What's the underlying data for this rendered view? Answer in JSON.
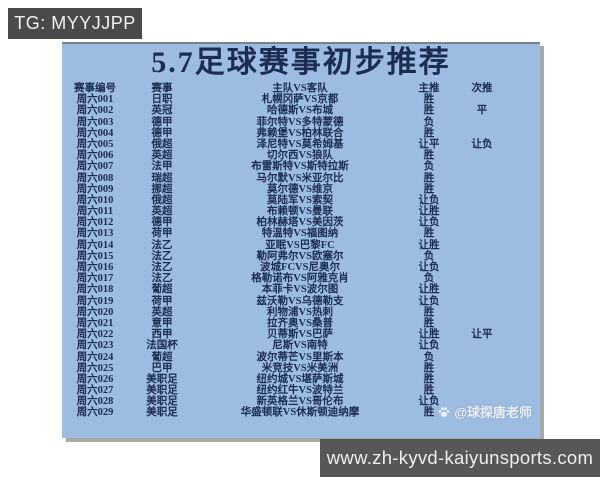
{
  "badge": {
    "text": "TG: MYYJJPP"
  },
  "panel": {
    "title": "5.7足球赛事初步推荐",
    "columns": {
      "id": "赛事编号",
      "league": "赛事",
      "match": "主队VS客队",
      "main": "主推",
      "alt": "次推"
    },
    "rows": [
      {
        "id": "周六001",
        "league": "日职",
        "match": "札幌冈萨VS京都",
        "main": "胜",
        "alt": ""
      },
      {
        "id": "周六002",
        "league": "英冠",
        "match": "哈德斯VS布城",
        "main": "胜",
        "alt": "平"
      },
      {
        "id": "周六003",
        "league": "德甲",
        "match": "菲尔特VS多特蒙德",
        "main": "负",
        "alt": ""
      },
      {
        "id": "周六004",
        "league": "德甲",
        "match": "弗赖堡VS柏林联合",
        "main": "胜",
        "alt": ""
      },
      {
        "id": "周六005",
        "league": "俄超",
        "match": "泽尼特VS莫希姆基",
        "main": "让平",
        "alt": "让负"
      },
      {
        "id": "周六006",
        "league": "英超",
        "match": "切尔西VS狼队",
        "main": "胜",
        "alt": ""
      },
      {
        "id": "周六007",
        "league": "法甲",
        "match": "布雷斯特VS斯特拉斯",
        "main": "负",
        "alt": ""
      },
      {
        "id": "周六008",
        "league": "瑞超",
        "match": "马尔默VS米亚尔比",
        "main": "胜",
        "alt": ""
      },
      {
        "id": "周六009",
        "league": "挪超",
        "match": "莫尔德VS维京",
        "main": "胜",
        "alt": ""
      },
      {
        "id": "周六010",
        "league": "俄超",
        "match": "莫陆军VS索契",
        "main": "让负",
        "alt": ""
      },
      {
        "id": "周六011",
        "league": "英超",
        "match": "布赖顿VS曼联",
        "main": "让胜",
        "alt": ""
      },
      {
        "id": "周六012",
        "league": "德甲",
        "match": "柏林赫塔VS美因茨",
        "main": "让负",
        "alt": ""
      },
      {
        "id": "周六013",
        "league": "荷甲",
        "match": "特温特VS福图纳",
        "main": "胜",
        "alt": ""
      },
      {
        "id": "周六014",
        "league": "法乙",
        "match": "亚眠VS巴黎FC",
        "main": "让胜",
        "alt": ""
      },
      {
        "id": "周六015",
        "league": "法乙",
        "match": "勒阿弗尔VS欧塞尔",
        "main": "负",
        "alt": ""
      },
      {
        "id": "周六016",
        "league": "法乙",
        "match": "波城FCVS尼奥尔",
        "main": "让负",
        "alt": ""
      },
      {
        "id": "周六017",
        "league": "法乙",
        "match": "格勒诺布VS阿雅克肖",
        "main": "负",
        "alt": ""
      },
      {
        "id": "周六018",
        "league": "葡超",
        "match": "本菲卡VS波尔图",
        "main": "让胜",
        "alt": ""
      },
      {
        "id": "周六019",
        "league": "荷甲",
        "match": "兹沃勒VS乌德勒支",
        "main": "让负",
        "alt": ""
      },
      {
        "id": "周六020",
        "league": "英超",
        "match": "利物浦VS热刺",
        "main": "胜",
        "alt": ""
      },
      {
        "id": "周六021",
        "league": "意甲",
        "match": "拉齐奥VS桑普",
        "main": "胜",
        "alt": ""
      },
      {
        "id": "周六022",
        "league": "西甲",
        "match": "贝蒂斯VS巴萨",
        "main": "让胜",
        "alt": "让平"
      },
      {
        "id": "周六023",
        "league": "法国杯",
        "match": "尼斯VS南特",
        "main": "让负",
        "alt": ""
      },
      {
        "id": "周六024",
        "league": "葡超",
        "match": "波尔蒂芒VS里斯本",
        "main": "负",
        "alt": ""
      },
      {
        "id": "周六025",
        "league": "巴甲",
        "match": "米竞技VS米美洲",
        "main": "胜",
        "alt": ""
      },
      {
        "id": "周六026",
        "league": "美职足",
        "match": "纽约城VS堪萨斯城",
        "main": "胜",
        "alt": ""
      },
      {
        "id": "周六027",
        "league": "美职足",
        "match": "纽约红牛VS波特兰",
        "main": "胜",
        "alt": ""
      },
      {
        "id": "周六028",
        "league": "美职足",
        "match": "新英格兰VS哥伦布",
        "main": "让负",
        "alt": ""
      },
      {
        "id": "周六029",
        "league": "美职足",
        "match": "华盛顿联VS休斯顿迪纳摩",
        "main": "胜",
        "alt": ""
      }
    ],
    "watermark": {
      "icon": "paw-icon",
      "text": "@球探唐老师"
    }
  },
  "footer": {
    "url": "www.zh-kyvd-kaiyunsports.com"
  },
  "colors": {
    "panel_bg": "#9cbce2",
    "text": "#1c2c52",
    "badge_bg": "#4a4a4a",
    "footer_bg": "#575757"
  }
}
